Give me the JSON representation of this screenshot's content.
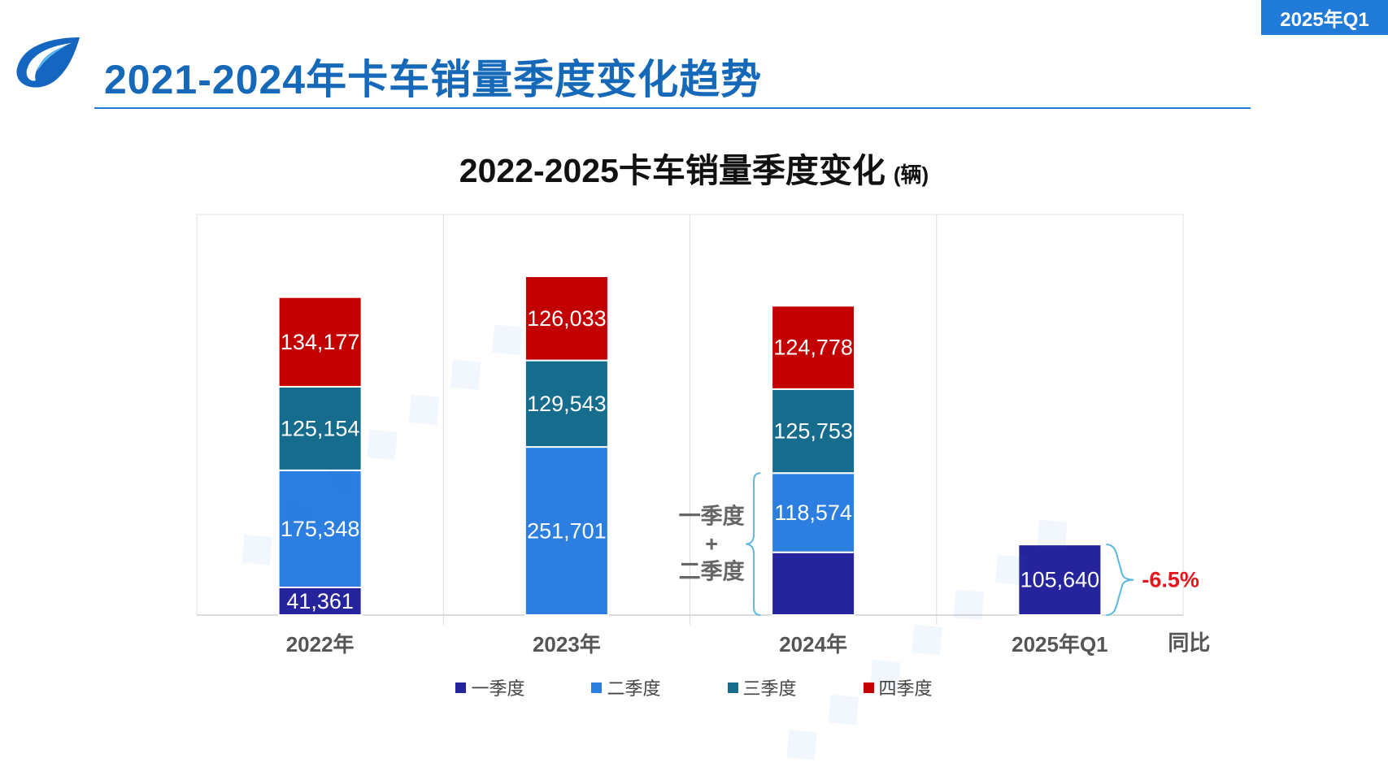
{
  "header": {
    "badge": "2025年Q1",
    "title": "2021-2024年卡车销量季度变化趋势"
  },
  "colors": {
    "q1": "#26249c",
    "q2": "#2c7fe0",
    "q3": "#156c8d",
    "q4": "#c30000",
    "accent": "#1f7ad8",
    "brace": "#5ab7e0",
    "negative": "#e8141b"
  },
  "chart_data": {
    "type": "bar",
    "stacked": true,
    "title": "2022-2025卡车销量季度变化",
    "unit": "(辆)",
    "categories": [
      "2022年",
      "2023年",
      "2024年",
      "2025年Q1"
    ],
    "series": [
      {
        "name": "一季度",
        "values": [
          41361,
          0,
          94000,
          105640
        ],
        "labels": [
          "41,361",
          "0",
          "",
          "105,640"
        ]
      },
      {
        "name": "二季度",
        "values": [
          175348,
          251701,
          118574,
          null
        ],
        "labels": [
          "175,348",
          "251,701",
          "118,574",
          ""
        ]
      },
      {
        "name": "三季度",
        "values": [
          125154,
          129543,
          125753,
          null
        ],
        "labels": [
          "125,154",
          "129,543",
          "125,753",
          ""
        ]
      },
      {
        "name": "四季度",
        "values": [
          134177,
          126033,
          124778,
          null
        ],
        "labels": [
          "134,177",
          "126,033",
          "124,778",
          ""
        ]
      }
    ],
    "annotations": {
      "brace_label": [
        "一季度",
        "+",
        "二季度"
      ],
      "yoy_label": "同比",
      "yoy_value": "-6.5%"
    },
    "grid": true,
    "legend_position": "bottom"
  }
}
